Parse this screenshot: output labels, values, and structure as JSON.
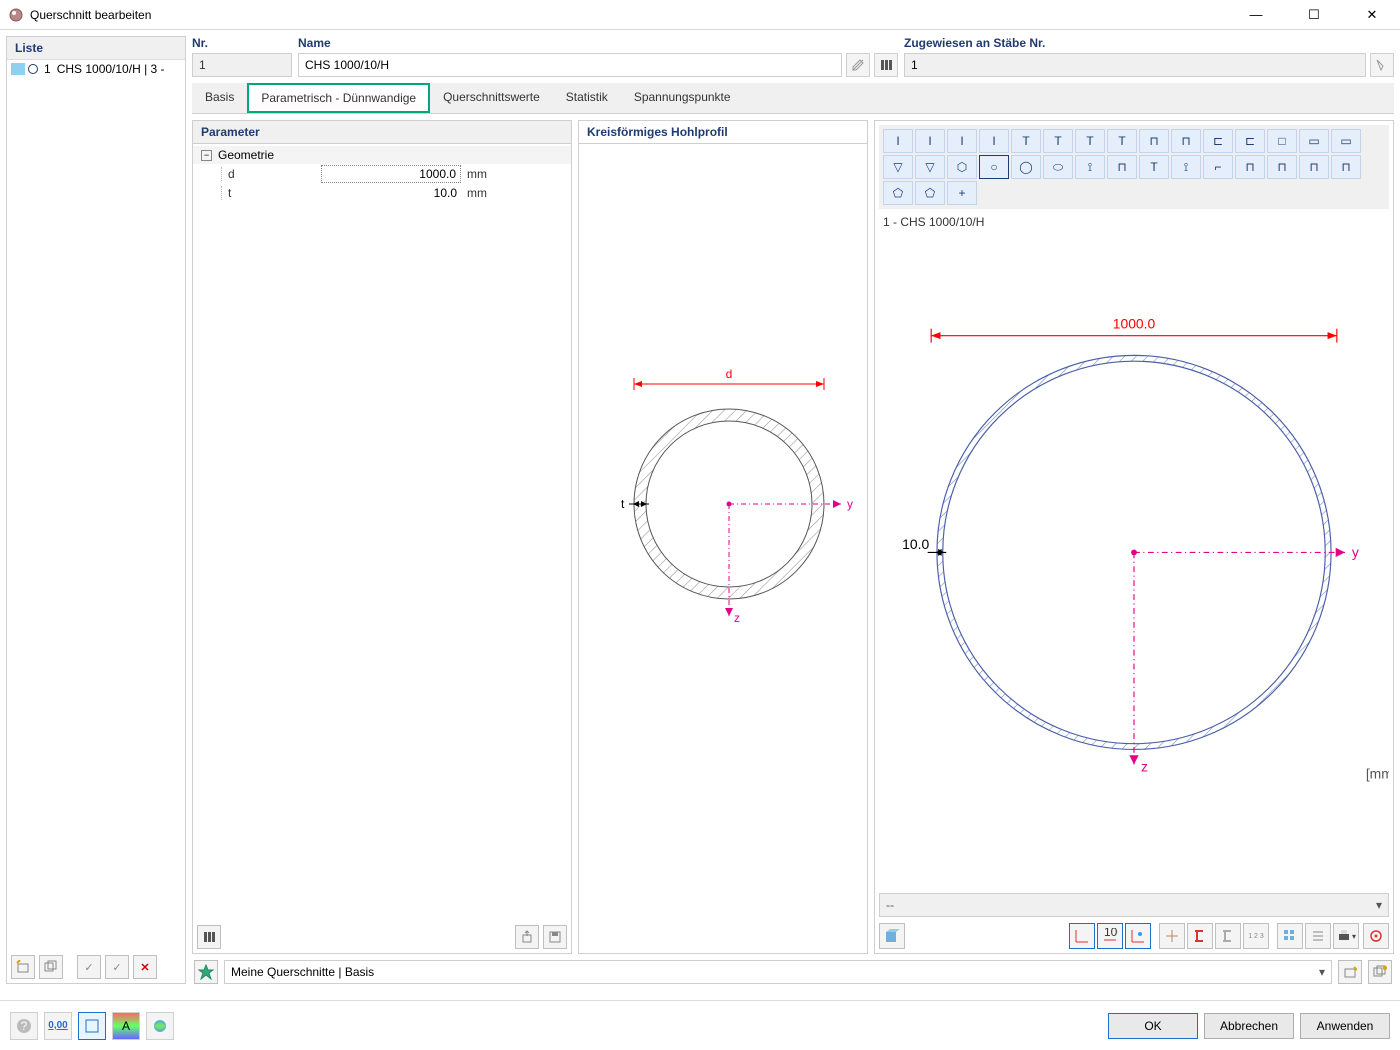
{
  "window": {
    "title": "Querschnitt bearbeiten"
  },
  "liste": {
    "label": "Liste",
    "item_num": "1",
    "item_text": "CHS 1000/10/H | 3 -"
  },
  "top": {
    "nr_label": "Nr.",
    "nr_value": "1",
    "name_label": "Name",
    "name_value": "CHS 1000/10/H",
    "zug_label": "Zugewiesen an Stäbe Nr.",
    "zug_value": "1"
  },
  "tabs": {
    "t1": "Basis",
    "t2": "Parametrisch - Dünnwandige",
    "t3": "Querschnittswerte",
    "t4": "Statistik",
    "t5": "Spannungspunkte"
  },
  "param": {
    "title": "Parameter",
    "group": "Geometrie",
    "rows": {
      "d": {
        "name": "d",
        "val": "1000.0",
        "unit": "mm"
      },
      "t": {
        "name": "t",
        "val": "10.0",
        "unit": "mm"
      }
    }
  },
  "preview": {
    "title": "Kreisförmiges Hohlprofil",
    "dim_d": "d",
    "dim_t": "t",
    "axis_y": "y",
    "axis_z": "z",
    "diagram": {
      "type": "hollow-circle",
      "outer_r": 95,
      "inner_r": 83,
      "stroke": "#555555",
      "hatch": "#9a9a9a",
      "dim_color": "#ff0000",
      "axis_color": "#e40087",
      "label_color_d": "#ff0000",
      "label_color_t": "#000000"
    }
  },
  "right": {
    "section_label": "1 - CHS 1000/10/H",
    "dim_outer": "1000.0",
    "dim_t": "10.0",
    "axis_y": "y",
    "axis_z": "z",
    "unit": "[mm]",
    "strip": "--",
    "diagram": {
      "type": "hollow-circle",
      "outer_r": 170,
      "wall": 5,
      "stroke": "#4a5fa8",
      "fill": "#c9d2ea",
      "dim_color": "#ff0000",
      "axis_color": "#e40087",
      "grid_bg": "#ffffff"
    },
    "shape_icons": [
      "I",
      "I",
      "I",
      "I",
      "T",
      "T",
      "T",
      "T",
      "⊓",
      "⊓",
      "⊏",
      "⊏",
      "□",
      "▭",
      "▭",
      "▽",
      "▽",
      "⬡",
      "○",
      "◯",
      "⬭",
      "⟟",
      "⊓",
      "T",
      "⟟",
      "⌐",
      "⊓",
      "⊓",
      "⊓",
      "⊓",
      "⬠",
      "⬠",
      "+"
    ],
    "selected_shape_index": 18
  },
  "meine": {
    "label": "Meine Querschnitte | Basis"
  },
  "footer": {
    "ok": "OK",
    "cancel": "Abbrechen",
    "apply": "Anwenden",
    "num_btn": "0,00"
  },
  "colors": {
    "panel_label": "#1f3b6f",
    "tab_active_border": "#00a67d",
    "shape_bg": "#e5effb",
    "shape_fg": "#1f3b6f"
  }
}
